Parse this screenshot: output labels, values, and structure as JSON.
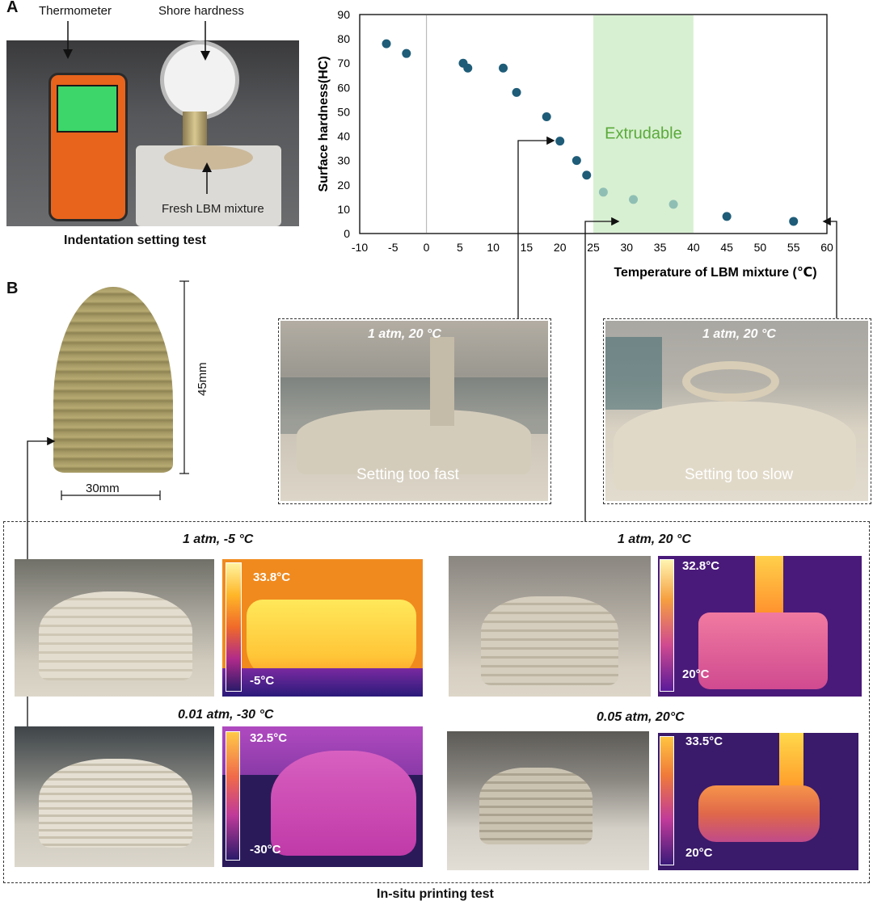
{
  "panel_a": {
    "letter": "A",
    "photo_labels": {
      "thermometer": "Thermometer",
      "shore": "Shore hardness",
      "mixture": "Fresh LBM mixture"
    },
    "caption": "Indentation setting test"
  },
  "chart_data": {
    "type": "scatter",
    "xlabel": "Temperature of LBM mixture (℃)",
    "ylabel": "Surface hardness(HC)",
    "xlim": [
      -10,
      60
    ],
    "ylim": [
      0,
      90
    ],
    "xticks": [
      "-10",
      "-5",
      "0",
      "5",
      "10",
      "15",
      "20",
      "25",
      "30",
      "35",
      "40",
      "45",
      "50",
      "55",
      "60"
    ],
    "yticks": [
      "0",
      "10",
      "20",
      "30",
      "40",
      "50",
      "60",
      "70",
      "80",
      "90"
    ],
    "shaded_region": {
      "x0": 25,
      "x1": 40,
      "label": "Extrudable",
      "color": "#d8f0d2",
      "label_color": "#5aaa3a"
    },
    "zero_line": true,
    "series": [
      {
        "color": "#1e5c78",
        "points": [
          [
            -6,
            78
          ],
          [
            -3,
            74
          ],
          [
            5.5,
            70
          ],
          [
            6.2,
            68
          ],
          [
            11.5,
            68
          ],
          [
            13.5,
            58
          ],
          [
            18,
            48
          ],
          [
            20,
            38
          ],
          [
            22.5,
            30
          ],
          [
            24,
            24
          ],
          [
            45,
            7
          ],
          [
            55,
            5
          ]
        ]
      },
      {
        "color": "#8fbfb4",
        "points": [
          [
            26.5,
            17
          ],
          [
            31,
            14
          ],
          [
            37,
            12
          ]
        ]
      }
    ]
  },
  "panel_b": {
    "letter": "B",
    "height_label": "45mm",
    "width_label": "30mm",
    "insets": [
      {
        "condition": "1 atm, 20 °C",
        "text": "Setting too fast"
      },
      {
        "condition": "1 atm, 20 °C",
        "text": "Setting too slow"
      }
    ],
    "tests": [
      {
        "condition": "1 atm, -5 °C",
        "tmax": "33.8°C",
        "tmin": "-5°C"
      },
      {
        "condition": "1 atm, 20 °C",
        "tmax": "32.8°C",
        "tmin": "20°C"
      },
      {
        "condition": "0.01 atm, -30 °C",
        "tmax": "32.5°C",
        "tmin": "-30°C"
      },
      {
        "condition": "0.05 atm, 20°C",
        "tmax": "33.5°C",
        "tmin": "20°C"
      }
    ],
    "caption": "In-situ printing test"
  }
}
